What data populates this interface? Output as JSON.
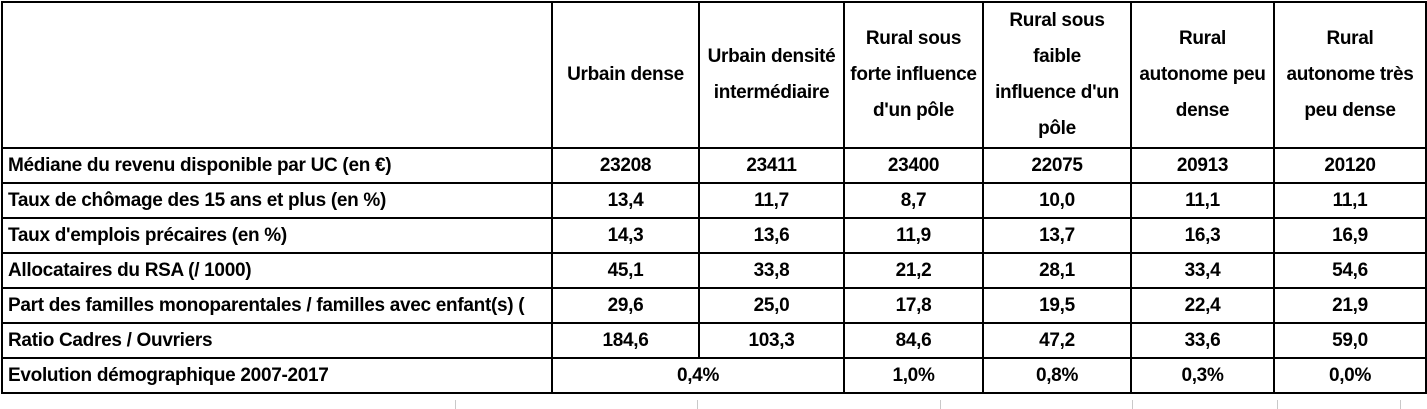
{
  "table": {
    "columns": [
      {
        "label": ""
      },
      {
        "label": "Urbain dense"
      },
      {
        "label": "Urbain densité\nintermédiaire"
      },
      {
        "label": "Rural sous\nforte influence\nd'un pôle"
      },
      {
        "label": "Rural sous\nfaible\ninfluence d'un\npôle"
      },
      {
        "label": "Rural\nautonome peu\ndense"
      },
      {
        "label": "Rural\nautonome très\npeu dense"
      }
    ],
    "rows": [
      {
        "label": "Médiane du revenu disponible par UC (en €)",
        "values": [
          "23208",
          "23411",
          "23400",
          "22075",
          "20913",
          "20120"
        ]
      },
      {
        "label": "Taux de chômage des 15 ans et plus (en %)",
        "values": [
          "13,4",
          "11,7",
          "8,7",
          "10,0",
          "11,1",
          "11,1"
        ]
      },
      {
        "label": "Taux d'emplois précaires (en %)",
        "values": [
          "14,3",
          "13,6",
          "11,9",
          "13,7",
          "16,3",
          "16,9"
        ]
      },
      {
        "label": "Allocataires du RSA (/ 1000)",
        "values": [
          "45,1",
          "33,8",
          "21,2",
          "28,1",
          "33,4",
          "54,6"
        ]
      },
      {
        "label": "Part des familles monoparentales / familles avec enfant(s) (",
        "values": [
          "29,6",
          "25,0",
          "17,8",
          "19,5",
          "22,4",
          "21,9"
        ]
      },
      {
        "label": "Ratio Cadres / Ouvriers",
        "values": [
          "184,6",
          "103,3",
          "84,6",
          "47,2",
          "33,6",
          "59,0"
        ]
      },
      {
        "label": "Evolution démographique 2007-2017",
        "values": [
          {
            "value": "0,4%",
            "colspan": 2
          },
          "1,0%",
          "0,8%",
          "0,3%",
          "0,0%"
        ]
      }
    ]
  },
  "colors": {
    "border": "#000000",
    "text": "#000000",
    "background": "#ffffff",
    "gridline_stub": "#c9c9c9"
  }
}
